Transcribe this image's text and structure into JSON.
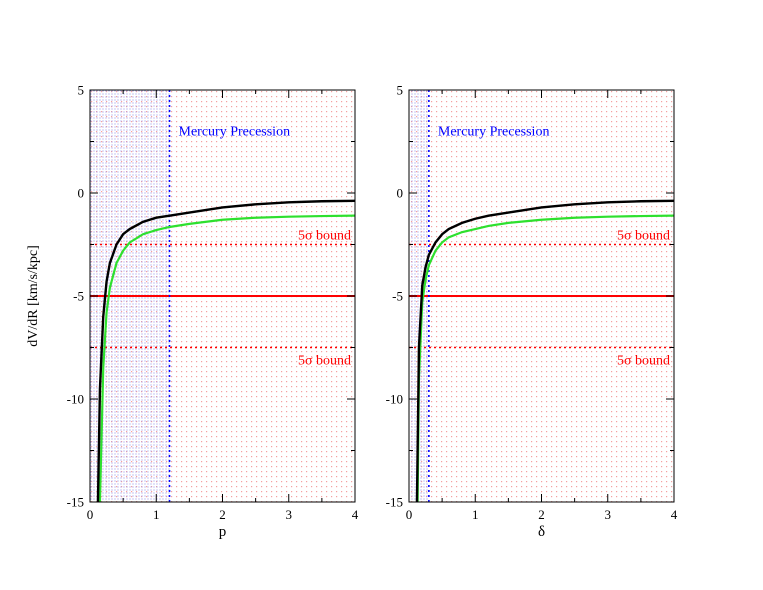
{
  "figure": {
    "ylabel": "dV/dR [km/s/kpc]"
  },
  "colors": {
    "black_curve": "#000000",
    "green_curve": "#2ee02e",
    "bound_line": "#ff0000",
    "mercury_line": "#0000ff",
    "mercury_text": "#0000ff",
    "bound_text": "#ff0000",
    "red_dots": "#f4a0a0",
    "blue_dots": "#8a8ae8"
  },
  "chart_data": [
    {
      "type": "line",
      "xlabel": "p",
      "ylabel": "dV/dR [km/s/kpc]",
      "xlim": [
        0,
        4
      ],
      "ylim": [
        -15,
        5
      ],
      "x_ticks": [
        "0",
        "1",
        "2",
        "3",
        "4"
      ],
      "y_ticks": [
        "-15",
        "-10",
        "-5",
        "0",
        "5"
      ],
      "excluded_region": [
        0,
        1.2
      ],
      "mercury": {
        "x": 1.2,
        "label": "Mercury Precession"
      },
      "bounds": [
        {
          "y": -2.5,
          "label": "5σ bound",
          "style": "dotted"
        },
        {
          "y": -5,
          "label": "",
          "style": "solid"
        },
        {
          "y": -7.5,
          "label": "5σ bound",
          "style": "dotted"
        }
      ],
      "series": [
        {
          "color": "black",
          "x": [
            0.12,
            0.15,
            0.2,
            0.25,
            0.3,
            0.4,
            0.5,
            0.6,
            0.8,
            1.0,
            1.2,
            1.5,
            2.0,
            2.5,
            3.0,
            3.5,
            4.0
          ],
          "y": [
            -15,
            -9.5,
            -6.0,
            -4.3,
            -3.4,
            -2.5,
            -2.0,
            -1.75,
            -1.4,
            -1.2,
            -1.1,
            -0.95,
            -0.7,
            -0.55,
            -0.45,
            -0.4,
            -0.38
          ]
        },
        {
          "color": "green",
          "x": [
            0.15,
            0.2,
            0.25,
            0.3,
            0.4,
            0.5,
            0.6,
            0.8,
            1.0,
            1.2,
            1.5,
            2.0,
            2.5,
            3.0,
            3.5,
            4.0
          ],
          "y": [
            -15,
            -8.5,
            -5.8,
            -4.6,
            -3.4,
            -2.8,
            -2.4,
            -2.0,
            -1.8,
            -1.65,
            -1.5,
            -1.3,
            -1.2,
            -1.15,
            -1.12,
            -1.1
          ]
        }
      ]
    },
    {
      "type": "line",
      "xlabel": "δ",
      "ylabel": "",
      "xlim": [
        0,
        4
      ],
      "ylim": [
        -15,
        5
      ],
      "x_ticks": [
        "0",
        "1",
        "2",
        "3",
        "4"
      ],
      "y_ticks": [
        "-15",
        "-10",
        "-5",
        "0",
        "5"
      ],
      "excluded_region": [
        0,
        0.3
      ],
      "mercury": {
        "x": 0.3,
        "label": "Mercury Precession"
      },
      "bounds": [
        {
          "y": -2.5,
          "label": "5σ bound",
          "style": "dotted"
        },
        {
          "y": -5,
          "label": "",
          "style": "solid"
        },
        {
          "y": -7.5,
          "label": "5σ bound",
          "style": "dotted"
        }
      ],
      "series": [
        {
          "color": "black",
          "x": [
            0.12,
            0.15,
            0.2,
            0.25,
            0.3,
            0.4,
            0.5,
            0.6,
            0.8,
            1.0,
            1.2,
            1.5,
            2.0,
            2.5,
            3.0,
            3.5,
            4.0
          ],
          "y": [
            -15,
            -7.5,
            -4.5,
            -3.6,
            -3.0,
            -2.4,
            -2.0,
            -1.75,
            -1.45,
            -1.25,
            -1.1,
            -0.95,
            -0.7,
            -0.55,
            -0.45,
            -0.4,
            -0.38
          ]
        },
        {
          "color": "green",
          "x": [
            0.13,
            0.15,
            0.2,
            0.25,
            0.3,
            0.4,
            0.5,
            0.6,
            0.8,
            1.0,
            1.2,
            1.5,
            2.0,
            2.5,
            3.0,
            3.5,
            4.0
          ],
          "y": [
            -15,
            -9.0,
            -5.3,
            -4.2,
            -3.5,
            -2.8,
            -2.4,
            -2.15,
            -1.9,
            -1.75,
            -1.6,
            -1.45,
            -1.3,
            -1.2,
            -1.15,
            -1.12,
            -1.1
          ]
        }
      ]
    }
  ]
}
